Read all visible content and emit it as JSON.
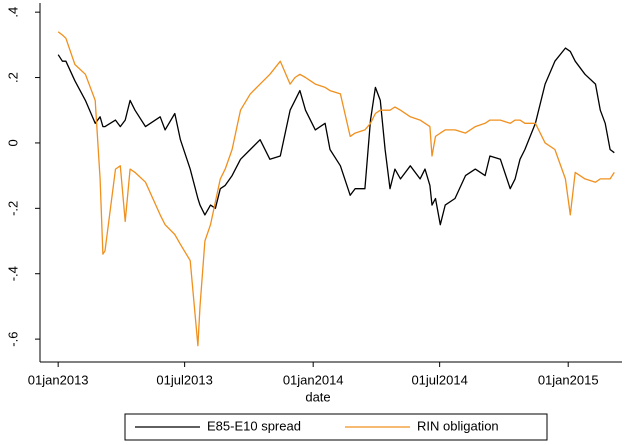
{
  "chart_data": {
    "type": "line",
    "x_label": "date",
    "x": [
      "2013-01-01",
      "2013-01-07",
      "2013-01-12",
      "2013-01-25",
      "2013-02-09",
      "2013-02-23",
      "2013-03-02",
      "2013-03-06",
      "2013-03-09",
      "2013-03-24",
      "2013-03-31",
      "2013-04-07",
      "2013-04-14",
      "2013-04-21",
      "2013-05-06",
      "2013-05-27",
      "2013-06-03",
      "2013-06-17",
      "2013-06-25",
      "2013-07-09",
      "2013-07-20",
      "2013-07-23",
      "2013-07-30",
      "2013-08-07",
      "2013-08-14",
      "2013-08-21",
      "2013-08-28",
      "2013-09-07",
      "2013-09-19",
      "2013-10-03",
      "2013-10-17",
      "2013-10-31",
      "2013-11-15",
      "2013-11-29",
      "2013-12-06",
      "2013-12-13",
      "2013-12-21",
      "2013-12-28",
      "2014-01-04",
      "2014-01-18",
      "2014-01-25",
      "2014-02-09",
      "2014-02-23",
      "2014-03-02",
      "2014-03-16",
      "2014-03-24",
      "2014-03-31",
      "2014-04-07",
      "2014-04-14",
      "2014-04-21",
      "2014-04-28",
      "2014-05-06",
      "2014-05-20",
      "2014-06-03",
      "2014-06-10",
      "2014-06-17",
      "2014-06-20",
      "2014-06-25",
      "2014-07-02",
      "2014-07-09",
      "2014-07-23",
      "2014-08-07",
      "2014-08-21",
      "2014-09-04",
      "2014-09-11",
      "2014-09-26",
      "2014-10-10",
      "2014-10-17",
      "2014-10-24",
      "2014-10-31",
      "2014-11-15",
      "2014-11-29",
      "2014-12-13",
      "2014-12-28",
      "2015-01-04",
      "2015-01-11",
      "2015-01-25",
      "2015-02-09",
      "2015-02-16",
      "2015-02-23",
      "2015-03-02",
      "2015-03-08"
    ],
    "series": [
      {
        "name": "E85-E10 spread",
        "color": "#000000",
        "values": [
          0.27,
          0.25,
          0.25,
          0.19,
          0.13,
          0.06,
          0.08,
          0.05,
          0.05,
          0.07,
          0.05,
          0.07,
          0.13,
          0.1,
          0.05,
          0.08,
          0.04,
          0.09,
          0.01,
          -0.08,
          -0.17,
          -0.19,
          -0.22,
          -0.19,
          -0.2,
          -0.14,
          -0.13,
          -0.1,
          -0.05,
          -0.02,
          0.01,
          -0.05,
          -0.04,
          0.1,
          0.13,
          0.16,
          0.1,
          0.07,
          0.04,
          0.06,
          -0.02,
          -0.07,
          -0.16,
          -0.14,
          -0.14,
          0.07,
          0.17,
          0.13,
          -0.02,
          -0.14,
          -0.08,
          -0.11,
          -0.07,
          -0.11,
          -0.08,
          -0.13,
          -0.19,
          -0.17,
          -0.25,
          -0.19,
          -0.17,
          -0.1,
          -0.08,
          -0.1,
          -0.04,
          -0.05,
          -0.14,
          -0.11,
          -0.05,
          -0.02,
          0.06,
          0.18,
          0.25,
          0.29,
          0.28,
          0.25,
          0.21,
          0.18,
          0.1,
          0.06,
          -0.02,
          -0.03
        ]
      },
      {
        "name": "RIN obligation",
        "color": "#f0901e",
        "values": [
          0.34,
          0.33,
          0.32,
          0.24,
          0.21,
          0.13,
          -0.11,
          -0.34,
          -0.33,
          -0.08,
          -0.07,
          -0.24,
          -0.08,
          -0.09,
          -0.12,
          -0.22,
          -0.25,
          -0.28,
          -0.31,
          -0.36,
          -0.62,
          -0.5,
          -0.3,
          -0.25,
          -0.18,
          -0.11,
          -0.08,
          -0.02,
          0.1,
          0.15,
          0.18,
          0.21,
          0.25,
          0.18,
          0.2,
          0.21,
          0.2,
          0.19,
          0.18,
          0.17,
          0.16,
          0.15,
          0.02,
          0.03,
          0.04,
          0.06,
          0.09,
          0.1,
          0.1,
          0.1,
          0.11,
          0.1,
          0.08,
          0.07,
          0.06,
          0.05,
          -0.04,
          0.02,
          0.03,
          0.04,
          0.04,
          0.03,
          0.05,
          0.06,
          0.07,
          0.07,
          0.06,
          0.07,
          0.07,
          0.06,
          0.06,
          0.0,
          -0.02,
          -0.11,
          -0.22,
          -0.09,
          -0.11,
          -0.12,
          -0.11,
          -0.11,
          -0.11,
          -0.09
        ]
      }
    ],
    "xlim": [
      "2012-12-06",
      "2015-03-19"
    ],
    "xticks": [
      {
        "value": "2013-01-01",
        "label": "01jan2013"
      },
      {
        "value": "2013-07-01",
        "label": "01jul2013"
      },
      {
        "value": "2014-01-01",
        "label": "01jan2014"
      },
      {
        "value": "2014-07-01",
        "label": "01jul2014"
      },
      {
        "value": "2015-01-01",
        "label": "01jan2015"
      }
    ],
    "ylim": [
      -0.67,
      0.428
    ],
    "yticks": [
      {
        "value": -0.6,
        "label": "-.6"
      },
      {
        "value": -0.4,
        "label": "-.4"
      },
      {
        "value": -0.2,
        "label": "-.2"
      },
      0,
      {
        "value": 0.2,
        "label": ".2"
      },
      {
        "value": 0.4,
        "label": ".4"
      }
    ],
    "grid": false,
    "legend": "bottom"
  }
}
